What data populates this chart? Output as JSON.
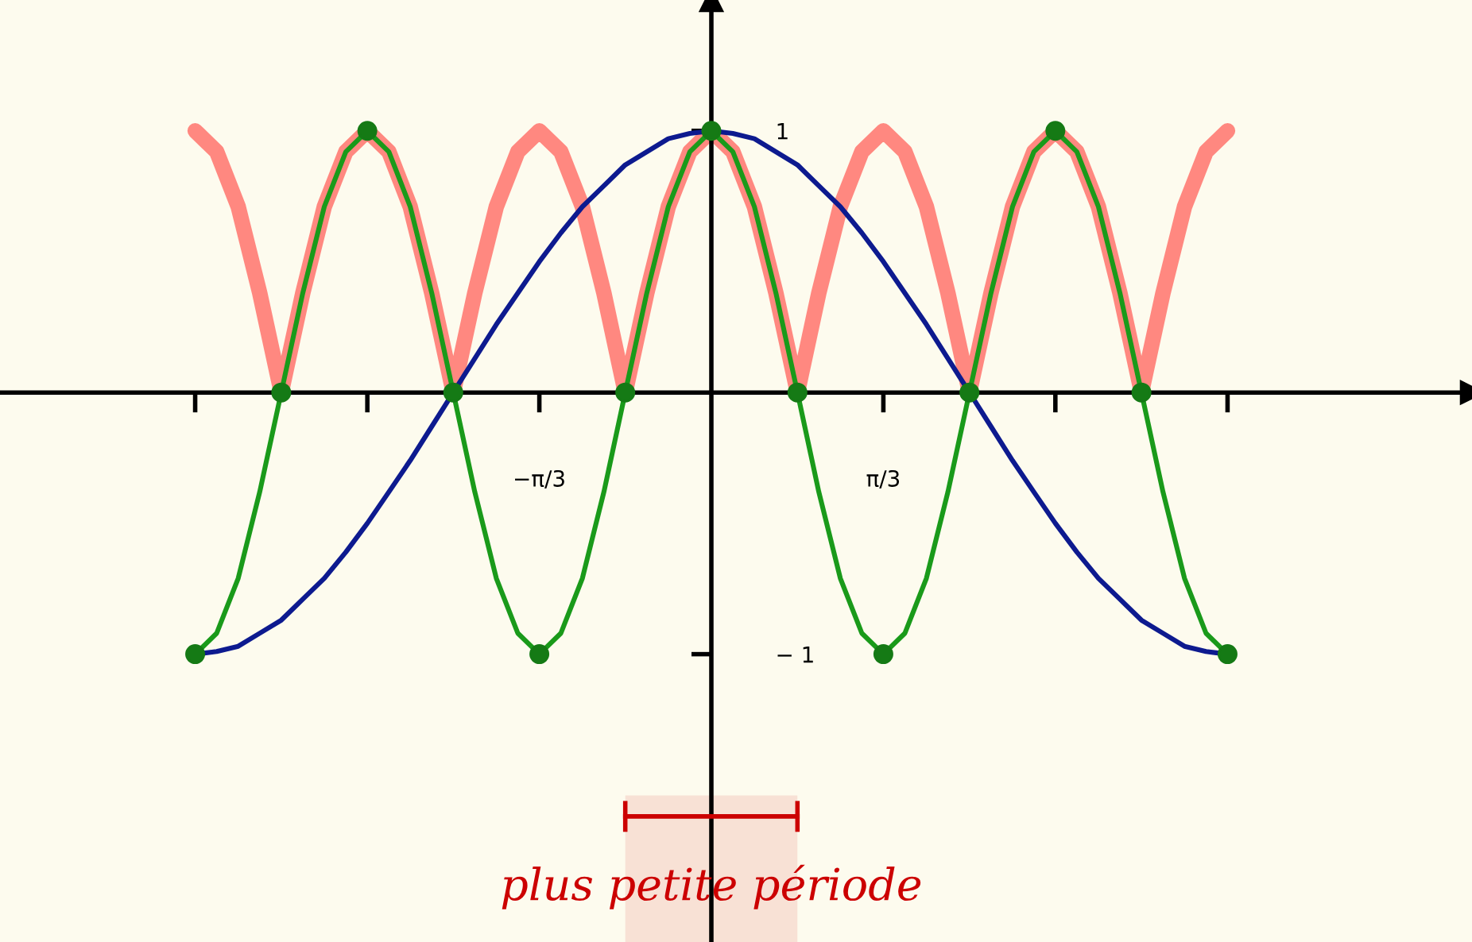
{
  "chart_data": {
    "type": "line",
    "x": [
      -3.142,
      -3.011,
      -2.88,
      -2.749,
      -2.618,
      -2.487,
      -2.356,
      -2.225,
      -2.094,
      -1.963,
      -1.833,
      -1.702,
      -1.571,
      -1.44,
      -1.309,
      -1.178,
      -1.047,
      -0.916,
      -0.785,
      -0.654,
      -0.524,
      -0.393,
      -0.262,
      -0.131,
      0,
      0.131,
      0.262,
      0.393,
      0.524,
      0.654,
      0.785,
      0.916,
      1.047,
      1.178,
      1.309,
      1.44,
      1.571,
      1.702,
      1.833,
      1.963,
      2.094,
      2.225,
      2.356,
      2.487,
      2.618,
      2.749,
      2.88,
      3.011,
      3.142
    ],
    "series": [
      {
        "color": "#ff7b73",
        "values": [
          1,
          0.92,
          0.71,
          0.38,
          0,
          0.38,
          0.71,
          0.92,
          1,
          0.92,
          0.71,
          0.38,
          0,
          0.38,
          0.71,
          0.92,
          1,
          0.92,
          0.71,
          0.38,
          0,
          0.38,
          0.71,
          0.92,
          1,
          0.92,
          0.71,
          0.38,
          0,
          0.38,
          0.71,
          0.92,
          1,
          0.92,
          0.71,
          0.38,
          0,
          0.38,
          0.71,
          0.92,
          1,
          0.92,
          0.71,
          0.38,
          0,
          0.38,
          0.71,
          0.92,
          1
        ]
      },
      {
        "color": "#0d1a8f",
        "values": [
          -1,
          -0.99,
          -0.97,
          -0.92,
          -0.87,
          -0.79,
          -0.71,
          -0.61,
          -0.5,
          -0.38,
          -0.26,
          -0.13,
          0,
          0.13,
          0.26,
          0.38,
          0.5,
          0.61,
          0.71,
          0.79,
          0.87,
          0.92,
          0.97,
          0.99,
          1,
          0.99,
          0.97,
          0.92,
          0.87,
          0.79,
          0.71,
          0.61,
          0.5,
          0.38,
          0.26,
          0.13,
          0,
          -0.13,
          -0.26,
          -0.38,
          -0.5,
          -0.61,
          -0.71,
          -0.79,
          -0.87,
          -0.92,
          -0.97,
          -0.99,
          -1
        ]
      },
      {
        "color": "#1a9a1a",
        "values": [
          -1,
          -0.92,
          -0.71,
          -0.38,
          0,
          0.38,
          0.71,
          0.92,
          1,
          0.92,
          0.71,
          0.38,
          0,
          -0.38,
          -0.71,
          -0.92,
          -1,
          -0.92,
          -0.71,
          -0.38,
          0,
          0.38,
          0.71,
          0.92,
          1,
          0.92,
          0.71,
          0.38,
          0,
          -0.38,
          -0.71,
          -0.92,
          -1,
          -0.92,
          -0.71,
          -0.38,
          0,
          0.38,
          0.71,
          0.92,
          1,
          0.92,
          0.71,
          0.38,
          0,
          -0.38,
          -0.71,
          -0.92,
          -1
        ]
      },
      {
        "type": "scatter",
        "color": "#157a15",
        "marker": "circle",
        "x": [
          -3.142,
          -2.618,
          -2.094,
          -1.571,
          -1.047,
          -0.524,
          0,
          0.524,
          1.047,
          1.571,
          2.094,
          2.618,
          3.142
        ],
        "values": [
          -1,
          0,
          1,
          0,
          -1,
          0,
          1,
          0,
          -1,
          0,
          1,
          0,
          -1
        ]
      }
    ],
    "xlim": [
      -4.33,
      4.63
    ],
    "ylim": [
      -2.1,
      1.5
    ],
    "xticks": [
      {
        "value": -3.142,
        "label": null
      },
      {
        "value": -2.094,
        "label": null
      },
      {
        "value": -1.047,
        "label": "−π/3"
      },
      {
        "value": 1.047,
        "label": "π/3"
      },
      {
        "value": 2.094,
        "label": null
      },
      {
        "value": 3.142,
        "label": null
      }
    ],
    "yticks": [
      {
        "value": -1,
        "label": "− 1"
      },
      1
    ],
    "bands": [
      {
        "axis": "x",
        "from": -0.524,
        "to": 0.524,
        "label": "plus petite période",
        "color": "#cc0000"
      }
    ],
    "legend": false
  }
}
